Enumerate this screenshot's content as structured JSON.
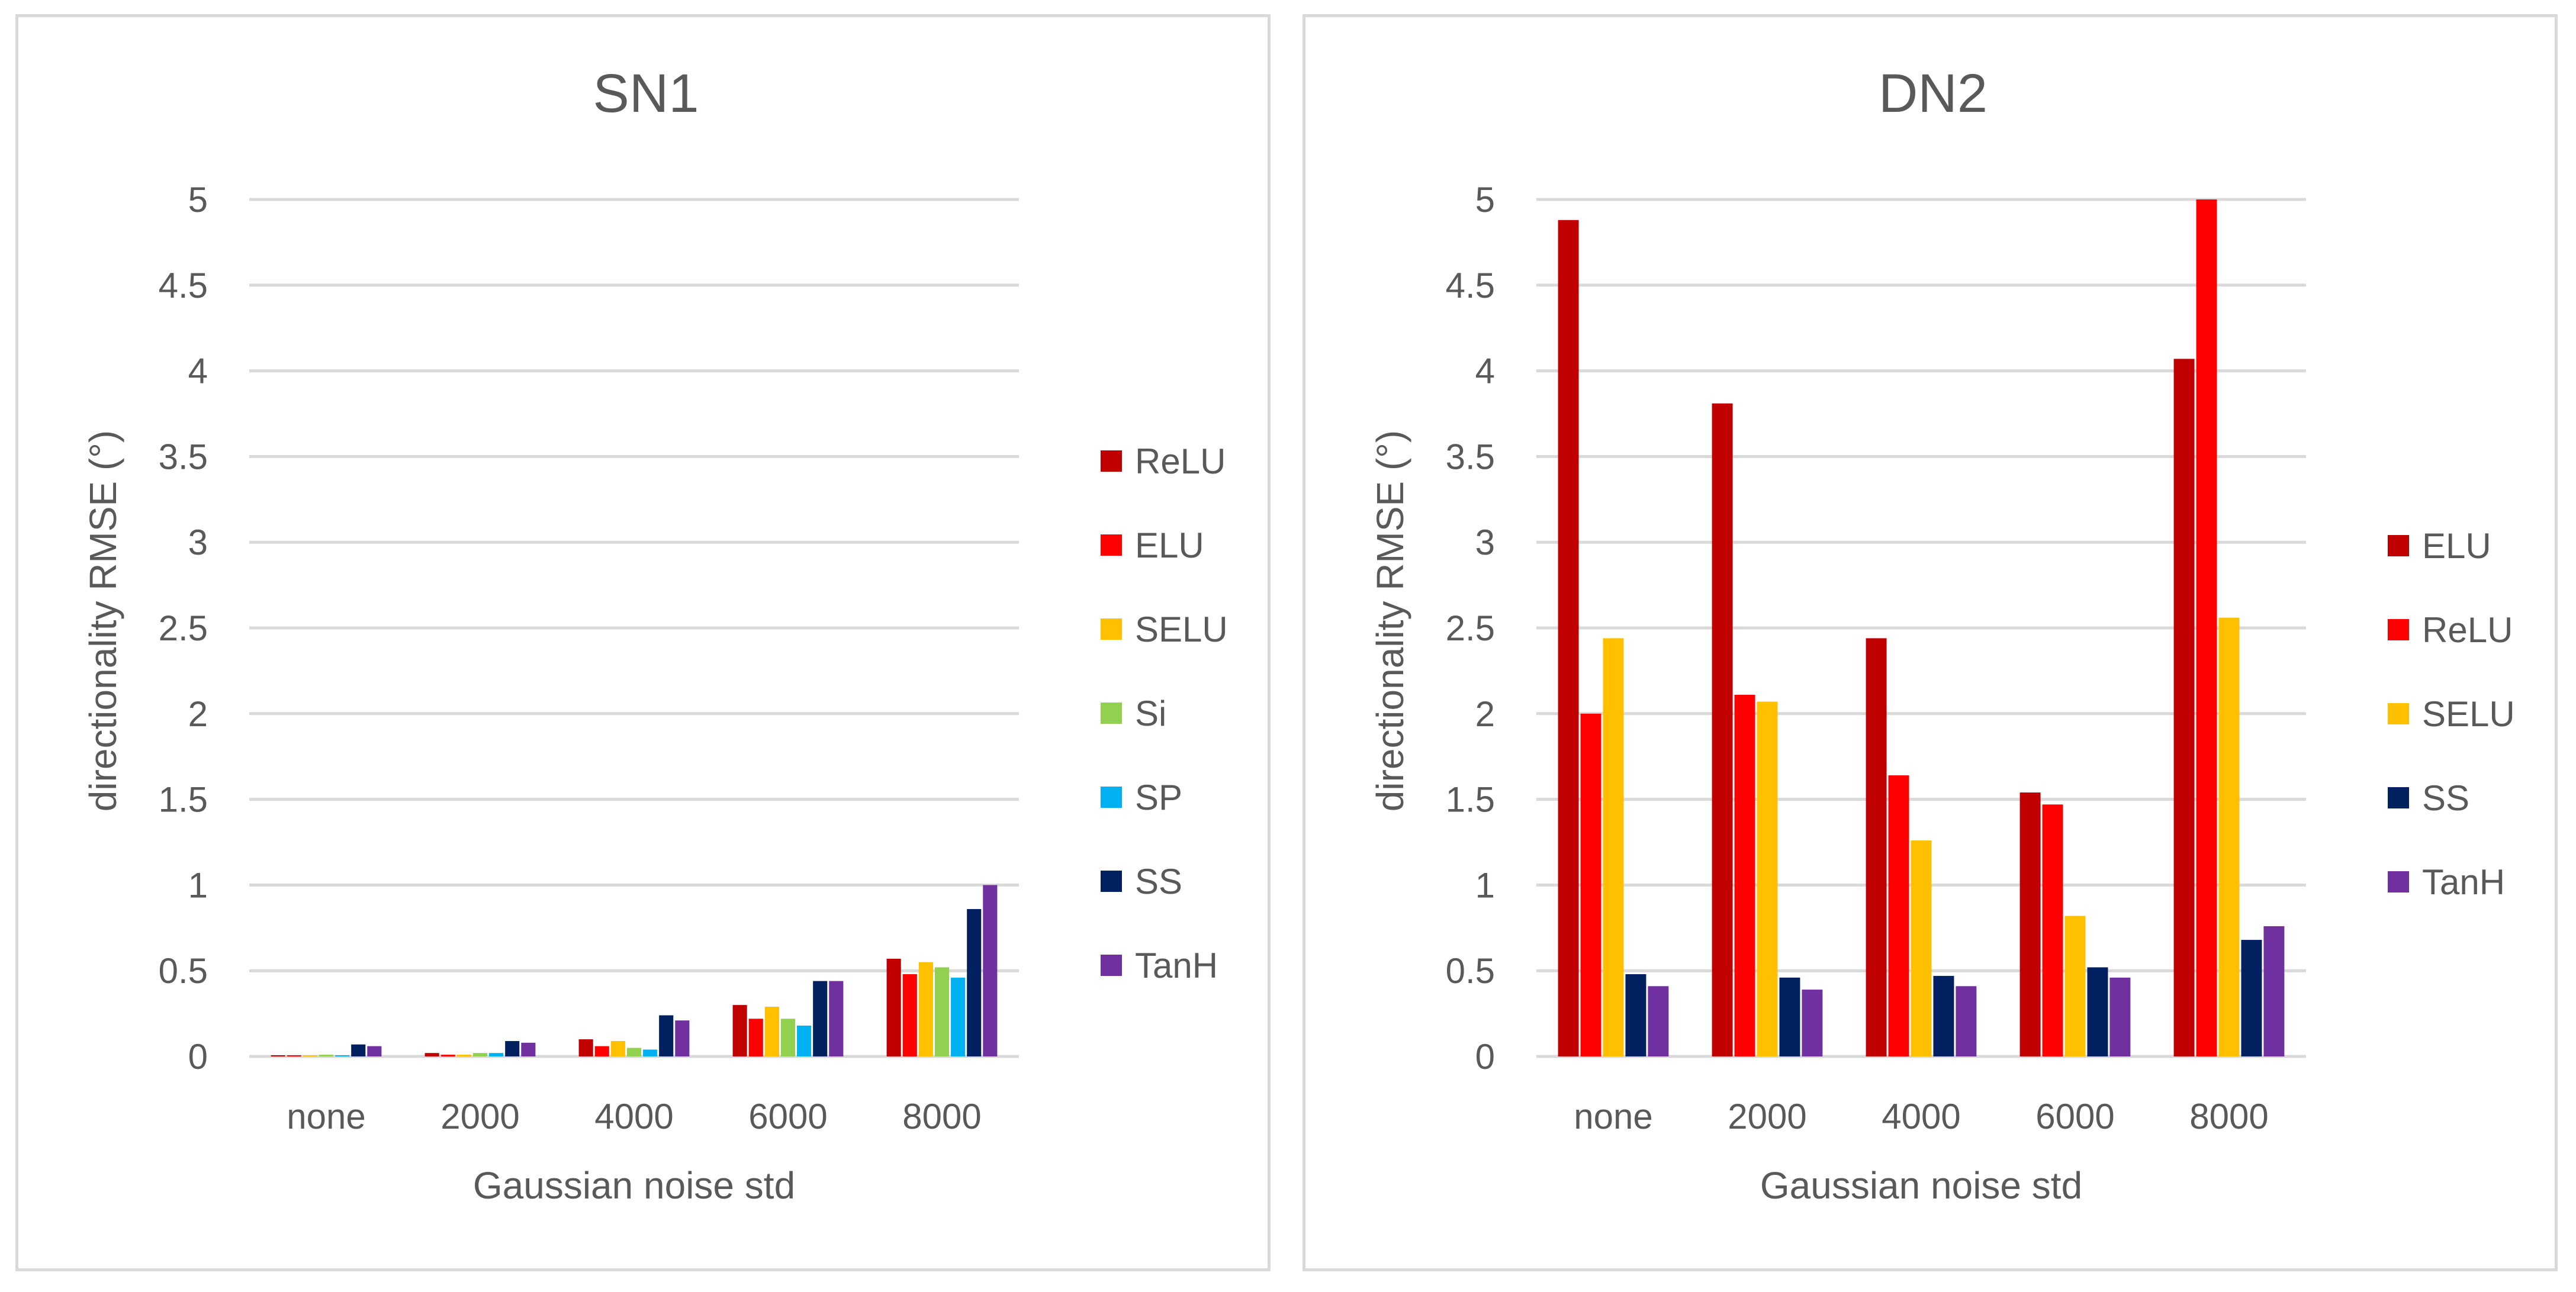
{
  "chart_data": [
    {
      "type": "bar",
      "title": "SN1",
      "xlabel": "Gaussian noise std",
      "ylabel": "directionality RMSE (°)",
      "ylim": [
        0,
        5
      ],
      "yticks": [
        "0",
        "0.5",
        "1",
        "1.5",
        "2",
        "2.5",
        "3",
        "3.5",
        "4",
        "4.5",
        "5"
      ],
      "grid": true,
      "legend_position": "right",
      "categories": [
        "none",
        "2000",
        "4000",
        "6000",
        "8000"
      ],
      "series": [
        {
          "name": "ReLU",
          "color": "#c00000",
          "values": [
            0.005,
            0.02,
            0.1,
            0.3,
            0.57
          ]
        },
        {
          "name": "ELU",
          "color": "#ff0000",
          "values": [
            0.005,
            0.01,
            0.06,
            0.22,
            0.48
          ]
        },
        {
          "name": "SELU",
          "color": "#ffc000",
          "values": [
            0.005,
            0.01,
            0.09,
            0.29,
            0.55
          ]
        },
        {
          "name": "Si",
          "color": "#92d050",
          "values": [
            0.01,
            0.02,
            0.05,
            0.22,
            0.52
          ]
        },
        {
          "name": "SP",
          "color": "#00b0f0",
          "values": [
            0.005,
            0.02,
            0.04,
            0.18,
            0.46
          ]
        },
        {
          "name": "SS",
          "color": "#002060",
          "values": [
            0.07,
            0.09,
            0.24,
            0.44,
            0.86
          ]
        },
        {
          "name": "TanH",
          "color": "#7030a0",
          "values": [
            0.06,
            0.08,
            0.21,
            0.44,
            1.0
          ]
        }
      ]
    },
    {
      "type": "bar",
      "title": "DN2",
      "xlabel": "Gaussian noise std",
      "ylabel": "directionality RMSE (°)",
      "ylim": [
        0,
        5
      ],
      "yticks": [
        "0",
        "0.5",
        "1",
        "1.5",
        "2",
        "2.5",
        "3",
        "3.5",
        "4",
        "4.5",
        "5"
      ],
      "grid": true,
      "legend_position": "right",
      "categories": [
        "none",
        "2000",
        "4000",
        "6000",
        "8000"
      ],
      "series": [
        {
          "name": "ELU",
          "color": "#c00000",
          "values": [
            4.88,
            3.81,
            2.44,
            1.54,
            4.07
          ]
        },
        {
          "name": "ReLU",
          "color": "#ff0000",
          "values": [
            2.0,
            2.11,
            1.64,
            1.47,
            5.0
          ]
        },
        {
          "name": "SELU",
          "color": "#ffc000",
          "values": [
            2.44,
            2.07,
            1.26,
            0.82,
            2.56
          ]
        },
        {
          "name": "SS",
          "color": "#002060",
          "values": [
            0.48,
            0.46,
            0.47,
            0.52,
            0.68
          ]
        },
        {
          "name": "TanH",
          "color": "#7030a0",
          "values": [
            0.41,
            0.39,
            0.41,
            0.46,
            0.76
          ]
        }
      ]
    }
  ]
}
